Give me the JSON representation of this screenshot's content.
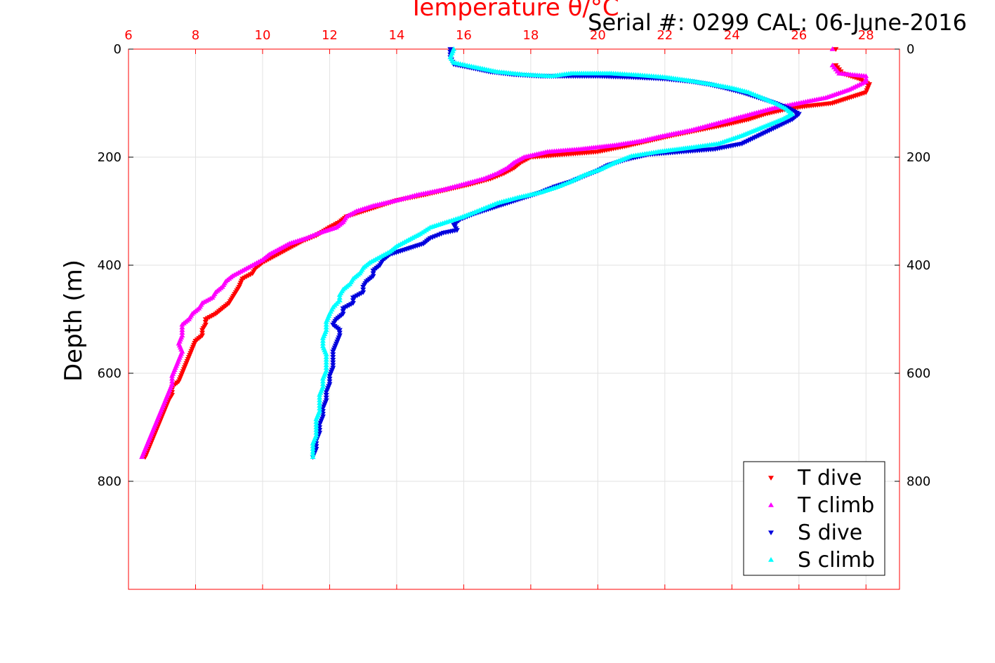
{
  "serial_text": "Serial #: 0299 CAL: 06-June-2016",
  "colors": {
    "T dive": "#ff0000",
    "T climb": "#ff00ff",
    "S dive": "#0000dd",
    "S climb": "#00ffff",
    "top_axis": "#ff0000",
    "grid": "#e2e2e2"
  },
  "chart_data": {
    "type": "scatter",
    "title": "Temperature θ/°C",
    "ylabel": "Depth (m)",
    "xlabel": "",
    "xlim": [
      6,
      29
    ],
    "ylim": [
      0,
      1000
    ],
    "y_reversed": true,
    "x_ticks": [
      6,
      8,
      10,
      12,
      14,
      16,
      18,
      20,
      22,
      24,
      26,
      28
    ],
    "y_ticks": [
      0,
      200,
      400,
      600,
      800
    ],
    "grid": true,
    "legend_position": "bottom-right",
    "series": [
      {
        "name": "T dive",
        "marker": "triangle-down",
        "points": [
          [
            27.1,
            0
          ],
          [
            27.1,
            30
          ],
          [
            27.3,
            45
          ],
          [
            27.8,
            55
          ],
          [
            28.1,
            65
          ],
          [
            28.0,
            80
          ],
          [
            27.5,
            90
          ],
          [
            27.0,
            100
          ],
          [
            26.3,
            105
          ],
          [
            25.7,
            110
          ],
          [
            25.0,
            120
          ],
          [
            24.5,
            130
          ],
          [
            23.8,
            140
          ],
          [
            23.0,
            150
          ],
          [
            22.2,
            160
          ],
          [
            21.5,
            170
          ],
          [
            20.8,
            180
          ],
          [
            20.0,
            190
          ],
          [
            19.0,
            195
          ],
          [
            18.0,
            200
          ],
          [
            17.7,
            210
          ],
          [
            17.5,
            220
          ],
          [
            17.2,
            230
          ],
          [
            16.8,
            240
          ],
          [
            16.2,
            250
          ],
          [
            15.5,
            260
          ],
          [
            14.8,
            270
          ],
          [
            14.0,
            280
          ],
          [
            13.5,
            290
          ],
          [
            13.0,
            300
          ],
          [
            12.5,
            310
          ],
          [
            12.3,
            320
          ],
          [
            12.0,
            330
          ],
          [
            11.6,
            345
          ],
          [
            11.2,
            355
          ],
          [
            10.9,
            365
          ],
          [
            10.6,
            375
          ],
          [
            10.3,
            385
          ],
          [
            10.0,
            395
          ],
          [
            9.8,
            405
          ],
          [
            9.7,
            415
          ],
          [
            9.4,
            425
          ],
          [
            9.3,
            440
          ],
          [
            9.2,
            450
          ],
          [
            9.1,
            460
          ],
          [
            9.0,
            470
          ],
          [
            8.8,
            480
          ],
          [
            8.6,
            490
          ],
          [
            8.3,
            500
          ],
          [
            8.3,
            510
          ],
          [
            8.2,
            520
          ],
          [
            8.2,
            530
          ],
          [
            8.0,
            540
          ],
          [
            7.9,
            555
          ],
          [
            7.8,
            570
          ],
          [
            7.7,
            585
          ],
          [
            7.6,
            600
          ],
          [
            7.5,
            615
          ],
          [
            7.3,
            625
          ],
          [
            7.3,
            640
          ],
          [
            7.2,
            650
          ],
          [
            7.1,
            665
          ],
          [
            7.0,
            680
          ],
          [
            6.9,
            695
          ],
          [
            6.8,
            710
          ],
          [
            6.7,
            725
          ],
          [
            6.6,
            740
          ],
          [
            6.5,
            755
          ]
        ]
      },
      {
        "name": "T climb",
        "marker": "triangle-up",
        "points": [
          [
            27.0,
            0
          ],
          [
            27.0,
            30
          ],
          [
            27.2,
            45
          ],
          [
            28.0,
            50
          ],
          [
            28.0,
            60
          ],
          [
            27.5,
            75
          ],
          [
            26.8,
            90
          ],
          [
            26.0,
            100
          ],
          [
            25.2,
            110
          ],
          [
            24.6,
            120
          ],
          [
            24.0,
            130
          ],
          [
            23.4,
            140
          ],
          [
            22.8,
            150
          ],
          [
            22.0,
            160
          ],
          [
            21.3,
            170
          ],
          [
            20.5,
            178
          ],
          [
            19.5,
            185
          ],
          [
            18.5,
            190
          ],
          [
            17.8,
            200
          ],
          [
            17.5,
            210
          ],
          [
            17.3,
            220
          ],
          [
            17.0,
            230
          ],
          [
            16.6,
            240
          ],
          [
            16.0,
            250
          ],
          [
            15.4,
            260
          ],
          [
            14.6,
            270
          ],
          [
            14.0,
            280
          ],
          [
            13.3,
            290
          ],
          [
            12.8,
            300
          ],
          [
            12.5,
            310
          ],
          [
            12.4,
            320
          ],
          [
            12.2,
            330
          ],
          [
            11.7,
            340
          ],
          [
            11.3,
            350
          ],
          [
            10.8,
            360
          ],
          [
            10.5,
            370
          ],
          [
            10.2,
            380
          ],
          [
            10.0,
            390
          ],
          [
            9.7,
            400
          ],
          [
            9.4,
            410
          ],
          [
            9.1,
            420
          ],
          [
            8.9,
            430
          ],
          [
            8.8,
            440
          ],
          [
            8.6,
            450
          ],
          [
            8.5,
            460
          ],
          [
            8.2,
            470
          ],
          [
            8.1,
            480
          ],
          [
            7.9,
            490
          ],
          [
            7.8,
            500
          ],
          [
            7.6,
            510
          ],
          [
            7.6,
            520
          ],
          [
            7.6,
            530
          ],
          [
            7.5,
            545
          ],
          [
            7.6,
            560
          ],
          [
            7.5,
            575
          ],
          [
            7.4,
            590
          ],
          [
            7.3,
            605
          ],
          [
            7.3,
            620
          ],
          [
            7.2,
            635
          ],
          [
            7.1,
            650
          ],
          [
            7.0,
            665
          ],
          [
            6.9,
            680
          ],
          [
            6.8,
            695
          ],
          [
            6.7,
            710
          ],
          [
            6.6,
            725
          ],
          [
            6.5,
            740
          ],
          [
            6.4,
            755
          ]
        ]
      },
      {
        "name": "S dive",
        "marker": "triangle-down",
        "points": [
          [
            15.6,
            0
          ],
          [
            15.6,
            15
          ],
          [
            15.7,
            28
          ],
          [
            16.1,
            33
          ],
          [
            16.8,
            42
          ],
          [
            17.5,
            47
          ],
          [
            18.3,
            50
          ],
          [
            19.0,
            50
          ],
          [
            20.0,
            50
          ],
          [
            21.0,
            52
          ],
          [
            22.0,
            55
          ],
          [
            22.8,
            60
          ],
          [
            23.3,
            65
          ],
          [
            23.8,
            72
          ],
          [
            24.3,
            80
          ],
          [
            24.8,
            90
          ],
          [
            25.3,
            100
          ],
          [
            25.7,
            110
          ],
          [
            26.0,
            120
          ],
          [
            25.8,
            130
          ],
          [
            25.3,
            145
          ],
          [
            24.8,
            160
          ],
          [
            24.3,
            175
          ],
          [
            23.5,
            185
          ],
          [
            22.5,
            190
          ],
          [
            21.5,
            195
          ],
          [
            20.8,
            205
          ],
          [
            20.3,
            215
          ],
          [
            20.0,
            225
          ],
          [
            19.6,
            235
          ],
          [
            19.2,
            245
          ],
          [
            18.7,
            255
          ],
          [
            18.3,
            265
          ],
          [
            17.8,
            275
          ],
          [
            17.3,
            285
          ],
          [
            16.8,
            295
          ],
          [
            16.3,
            305
          ],
          [
            15.9,
            315
          ],
          [
            15.7,
            325
          ],
          [
            15.8,
            335
          ],
          [
            15.4,
            340
          ],
          [
            15.0,
            350
          ],
          [
            14.8,
            360
          ],
          [
            14.3,
            370
          ],
          [
            13.8,
            380
          ],
          [
            13.6,
            390
          ],
          [
            13.5,
            400
          ],
          [
            13.3,
            410
          ],
          [
            13.3,
            420
          ],
          [
            13.1,
            430
          ],
          [
            13.0,
            440
          ],
          [
            13.0,
            450
          ],
          [
            12.7,
            460
          ],
          [
            12.7,
            470
          ],
          [
            12.4,
            480
          ],
          [
            12.4,
            490
          ],
          [
            12.2,
            500
          ],
          [
            12.1,
            510
          ],
          [
            12.3,
            520
          ],
          [
            12.3,
            530
          ],
          [
            12.2,
            545
          ],
          [
            12.1,
            560
          ],
          [
            12.1,
            575
          ],
          [
            12.1,
            590
          ],
          [
            12.0,
            605
          ],
          [
            12.0,
            620
          ],
          [
            11.9,
            635
          ],
          [
            11.9,
            650
          ],
          [
            11.8,
            665
          ],
          [
            11.8,
            680
          ],
          [
            11.7,
            695
          ],
          [
            11.7,
            710
          ],
          [
            11.6,
            725
          ],
          [
            11.6,
            740
          ],
          [
            11.5,
            755
          ]
        ]
      },
      {
        "name": "S climb",
        "marker": "triangle-up",
        "points": [
          [
            15.7,
            0
          ],
          [
            15.6,
            15
          ],
          [
            15.7,
            25
          ],
          [
            16.3,
            33
          ],
          [
            17.0,
            42
          ],
          [
            17.8,
            47
          ],
          [
            18.6,
            50
          ],
          [
            19.2,
            45
          ],
          [
            20.4,
            45
          ],
          [
            21.2,
            48
          ],
          [
            22.0,
            52
          ],
          [
            22.7,
            58
          ],
          [
            23.4,
            65
          ],
          [
            24.0,
            72
          ],
          [
            24.5,
            80
          ],
          [
            24.9,
            90
          ],
          [
            25.3,
            100
          ],
          [
            25.6,
            110
          ],
          [
            25.8,
            120
          ],
          [
            25.5,
            130
          ],
          [
            24.9,
            145
          ],
          [
            24.3,
            160
          ],
          [
            23.6,
            175
          ],
          [
            22.8,
            182
          ],
          [
            21.8,
            190
          ],
          [
            21.0,
            198
          ],
          [
            20.5,
            210
          ],
          [
            20.1,
            222
          ],
          [
            19.6,
            233
          ],
          [
            19.2,
            245
          ],
          [
            18.8,
            255
          ],
          [
            18.3,
            265
          ],
          [
            17.6,
            275
          ],
          [
            17.0,
            285
          ],
          [
            16.6,
            295
          ],
          [
            16.2,
            305
          ],
          [
            15.9,
            312
          ],
          [
            15.5,
            320
          ],
          [
            15.0,
            330
          ],
          [
            14.7,
            342
          ],
          [
            14.3,
            355
          ],
          [
            14.0,
            365
          ],
          [
            13.8,
            375
          ],
          [
            13.5,
            385
          ],
          [
            13.2,
            395
          ],
          [
            13.0,
            405
          ],
          [
            12.9,
            415
          ],
          [
            12.7,
            425
          ],
          [
            12.6,
            435
          ],
          [
            12.4,
            445
          ],
          [
            12.3,
            455
          ],
          [
            12.3,
            465
          ],
          [
            12.1,
            478
          ],
          [
            12.0,
            490
          ],
          [
            11.9,
            505
          ],
          [
            11.9,
            520
          ],
          [
            11.8,
            535
          ],
          [
            11.8,
            550
          ],
          [
            11.9,
            565
          ],
          [
            11.9,
            580
          ],
          [
            11.9,
            595
          ],
          [
            11.8,
            610
          ],
          [
            11.8,
            625
          ],
          [
            11.7,
            640
          ],
          [
            11.7,
            655
          ],
          [
            11.7,
            670
          ],
          [
            11.6,
            685
          ],
          [
            11.6,
            700
          ],
          [
            11.6,
            715
          ],
          [
            11.5,
            730
          ],
          [
            11.5,
            745
          ],
          [
            11.5,
            755
          ]
        ]
      }
    ]
  }
}
